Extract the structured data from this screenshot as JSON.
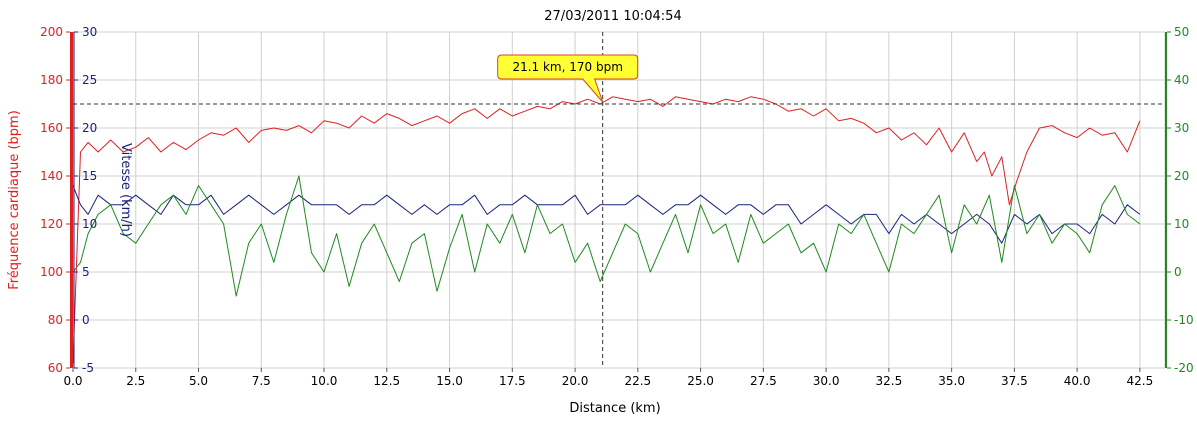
{
  "chart_data": {
    "type": "line",
    "title": "27/03/2011 10:04:54",
    "xlabel": "Distance (km)",
    "xlim": [
      0,
      43.5
    ],
    "x_ticks": [
      0,
      2.5,
      5,
      7.5,
      10,
      12.5,
      15,
      17.5,
      20,
      22.5,
      25,
      27.5,
      30,
      32.5,
      35,
      37.5,
      40,
      42.5
    ],
    "x_tick_labels": [
      "0.0",
      "2.5",
      "5.0",
      "7.5",
      "10.0",
      "12.5",
      "15.0",
      "17.5",
      "20.0",
      "22.5",
      "25.0",
      "27.5",
      "30.0",
      "32.5",
      "35.0",
      "37.5",
      "40.0",
      "42.5"
    ],
    "grid": true,
    "axes": {
      "hr": {
        "label": "Fréquence cardiaque (bpm)",
        "range": [
          60,
          200
        ],
        "ticks": [
          60,
          80,
          100,
          120,
          140,
          160,
          180,
          200
        ],
        "color": "#e02020"
      },
      "speed": {
        "label": "Vitesse (km/h)",
        "range": [
          -5,
          30
        ],
        "ticks": [
          -5,
          0,
          5,
          10,
          15,
          20,
          25,
          30
        ],
        "color": "#1a237e"
      },
      "altitude": {
        "label": "",
        "range": [
          -20,
          50
        ],
        "ticks": [
          -20,
          -10,
          0,
          10,
          20,
          30,
          40,
          50
        ],
        "color": "#1f8a1f"
      }
    },
    "series": [
      {
        "axis": "hr",
        "color": "#e02020",
        "x": [
          0,
          0.3,
          0.6,
          1,
          1.5,
          2,
          2.5,
          3,
          3.5,
          4,
          4.5,
          5,
          5.5,
          6,
          6.5,
          7,
          7.5,
          8,
          8.5,
          9,
          9.5,
          10,
          10.5,
          11,
          11.5,
          12,
          12.5,
          13,
          13.5,
          14,
          14.5,
          15,
          15.5,
          16,
          16.5,
          17,
          17.5,
          18,
          18.5,
          19,
          19.5,
          20,
          20.5,
          21,
          21.5,
          22,
          22.5,
          23,
          23.5,
          24,
          24.5,
          25,
          25.5,
          26,
          26.5,
          27,
          27.5,
          28,
          28.5,
          29,
          29.5,
          30,
          30.5,
          31,
          31.5,
          32,
          32.5,
          33,
          33.5,
          34,
          34.5,
          35,
          35.5,
          36,
          36.3,
          36.6,
          37,
          37.3,
          37.6,
          38,
          38.5,
          39,
          39.5,
          40,
          40.5,
          41,
          41.5,
          42,
          42.5
        ],
        "values": [
          62,
          150,
          154,
          150,
          155,
          150,
          152,
          156,
          150,
          154,
          151,
          155,
          158,
          157,
          160,
          154,
          159,
          160,
          159,
          161,
          158,
          163,
          162,
          160,
          165,
          162,
          166,
          164,
          161,
          163,
          165,
          162,
          166,
          168,
          164,
          168,
          165,
          167,
          169,
          168,
          171,
          170,
          172,
          170,
          173,
          172,
          171,
          172,
          169,
          173,
          172,
          171,
          170,
          172,
          171,
          173,
          172,
          170,
          167,
          168,
          165,
          168,
          163,
          164,
          162,
          158,
          160,
          155,
          158,
          153,
          160,
          150,
          158,
          146,
          150,
          140,
          148,
          128,
          138,
          150,
          160,
          161,
          158,
          156,
          160,
          157,
          158,
          150,
          163
        ]
      },
      {
        "axis": "speed",
        "color": "#1a237e",
        "x": [
          0,
          0.3,
          0.6,
          1,
          1.5,
          2,
          2.5,
          3,
          3.5,
          4,
          4.5,
          5,
          5.5,
          6,
          6.5,
          7,
          7.5,
          8,
          8.5,
          9,
          9.5,
          10,
          10.5,
          11,
          11.5,
          12,
          12.5,
          13,
          13.5,
          14,
          14.5,
          15,
          15.5,
          16,
          16.5,
          17,
          17.5,
          18,
          18.5,
          19,
          19.5,
          20,
          20.5,
          21,
          21.5,
          22,
          22.5,
          23,
          23.5,
          24,
          24.5,
          25,
          25.5,
          26,
          26.5,
          27,
          27.5,
          28,
          28.5,
          29,
          29.5,
          30,
          30.5,
          31,
          31.5,
          32,
          32.5,
          33,
          33.5,
          34,
          34.5,
          35,
          35.5,
          36,
          36.5,
          37,
          37.5,
          38,
          38.5,
          39,
          39.5,
          40,
          40.5,
          41,
          41.5,
          42,
          42.5
        ],
        "values": [
          14,
          12,
          11,
          13,
          12,
          12,
          13,
          12,
          11,
          13,
          12,
          12,
          13,
          11,
          12,
          13,
          12,
          11,
          12,
          13,
          12,
          12,
          12,
          11,
          12,
          12,
          13,
          12,
          11,
          12,
          11,
          12,
          12,
          13,
          11,
          12,
          12,
          13,
          12,
          12,
          12,
          13,
          11,
          12,
          12,
          12,
          13,
          12,
          11,
          12,
          12,
          13,
          12,
          11,
          12,
          12,
          11,
          12,
          12,
          10,
          11,
          12,
          11,
          10,
          11,
          11,
          9,
          11,
          10,
          11,
          10,
          9,
          10,
          11,
          10,
          8,
          11,
          10,
          11,
          9,
          10,
          10,
          9,
          11,
          10,
          12,
          11
        ]
      },
      {
        "axis": "altitude",
        "color": "#1f8a1f",
        "x": [
          0,
          0.3,
          0.6,
          1,
          1.5,
          2,
          2.5,
          3,
          3.5,
          4,
          4.5,
          5,
          5.5,
          6,
          6.5,
          7,
          7.5,
          8,
          8.5,
          9,
          9.5,
          10,
          10.5,
          11,
          11.5,
          12,
          12.5,
          13,
          13.5,
          14,
          14.5,
          15,
          15.5,
          16,
          16.5,
          17,
          17.5,
          18,
          18.5,
          19,
          19.5,
          20,
          20.5,
          21,
          21.5,
          22,
          22.5,
          23,
          23.5,
          24,
          24.5,
          25,
          25.5,
          26,
          26.5,
          27,
          27.5,
          28,
          28.5,
          29,
          29.5,
          30,
          30.5,
          31,
          31.5,
          32,
          32.5,
          33,
          33.5,
          34,
          34.5,
          35,
          35.5,
          36,
          36.5,
          37,
          37.5,
          38,
          38.5,
          39,
          39.5,
          40,
          40.5,
          41,
          41.5,
          42,
          42.5
        ],
        "values": [
          0,
          2,
          8,
          12,
          14,
          8,
          6,
          10,
          14,
          16,
          12,
          18,
          14,
          10,
          -5,
          6,
          10,
          2,
          12,
          20,
          4,
          0,
          8,
          -3,
          6,
          10,
          4,
          -2,
          6,
          8,
          -4,
          5,
          12,
          0,
          10,
          6,
          12,
          4,
          14,
          8,
          10,
          2,
          6,
          -2,
          4,
          10,
          8,
          0,
          6,
          12,
          4,
          14,
          8,
          10,
          2,
          12,
          6,
          8,
          10,
          4,
          6,
          0,
          10,
          8,
          12,
          6,
          0,
          10,
          8,
          12,
          16,
          4,
          14,
          10,
          16,
          2,
          18,
          8,
          12,
          6,
          10,
          8,
          4,
          14,
          18,
          12,
          10
        ]
      }
    ],
    "crosshair": {
      "x": 21.1,
      "hr": 170
    },
    "tooltip": "21.1 km, 170 bpm"
  }
}
